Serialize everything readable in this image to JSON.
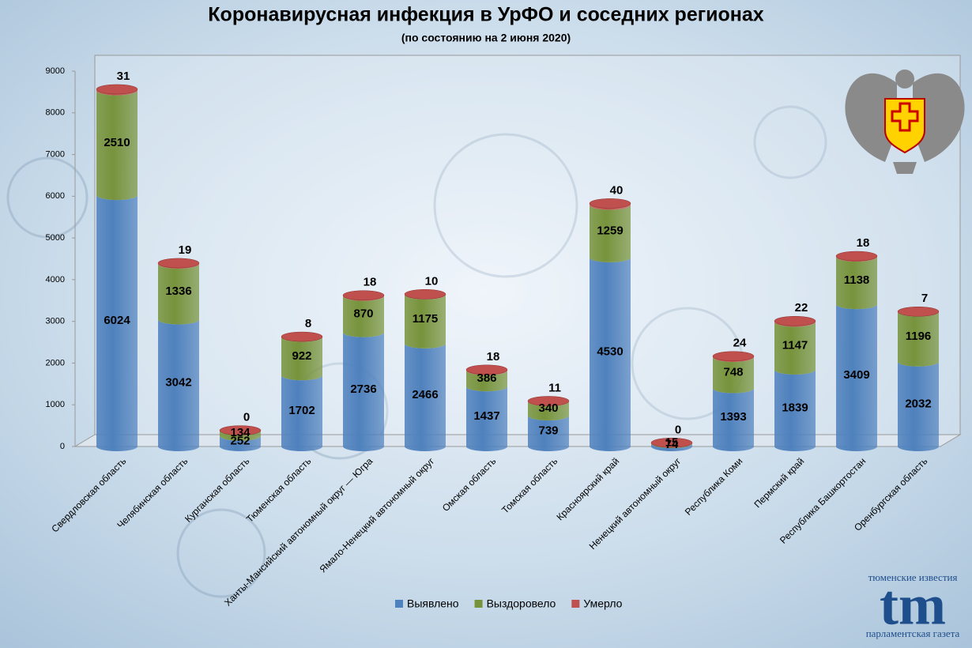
{
  "chart_data": {
    "type": "stacked-cylinder",
    "title": "Коронавирусная инфекция в УрФО и соседних регионах",
    "subtitle": "(по состоянию на 2 июня 2020)",
    "categories": [
      "Свердловская область",
      "Челябинская область",
      "Курганская область",
      "Тюменская область",
      "Ханты-Мансийский автономный округ — Югра",
      "Ямало-Ненецкий автономный округ",
      "Омская область",
      "Томская область",
      "Красноярский край",
      "Ненецкий автономный округ",
      "Республика Коми",
      "Пермский край",
      "Республика Башкортостан",
      "Оренбургская область"
    ],
    "series": [
      {
        "name": "Выявлено",
        "color": "#4f81bd",
        "values": [
          6024,
          3042,
          252,
          1702,
          2736,
          2466,
          1437,
          739,
          4530,
          74,
          1393,
          1839,
          3409,
          2032
        ]
      },
      {
        "name": "Выздоровело",
        "color": "#77933c",
        "values": [
          2510,
          1336,
          134,
          922,
          870,
          1175,
          386,
          340,
          1259,
          15,
          748,
          1147,
          1138,
          1196
        ]
      },
      {
        "name": "Умерло",
        "color": "#c0504d",
        "values": [
          31,
          19,
          0,
          8,
          18,
          10,
          18,
          11,
          40,
          0,
          24,
          22,
          18,
          7
        ]
      }
    ],
    "ylim": [
      0,
      9000
    ],
    "yticks": [
      0,
      1000,
      2000,
      3000,
      4000,
      5000,
      6000,
      7000,
      8000,
      9000
    ],
    "grid": false,
    "legend": "bottom"
  },
  "logo": {
    "top": "тюменские известия",
    "mark": "tm",
    "bottom": "парламентская газета"
  }
}
